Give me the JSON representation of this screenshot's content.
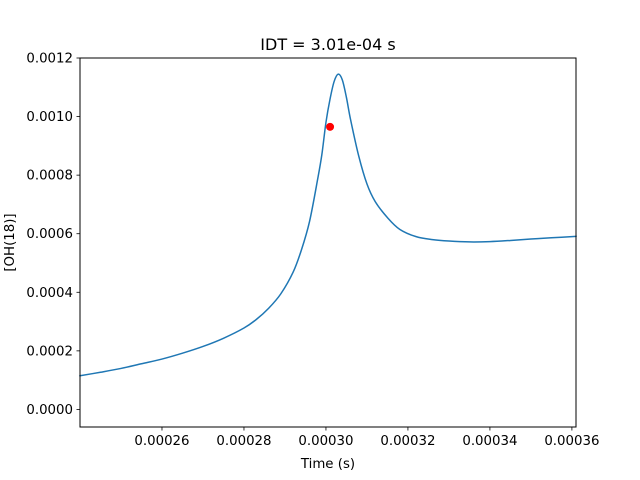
{
  "chart_data": {
    "type": "line",
    "title": "IDT = 3.01e-04 s",
    "xlabel": "Time (s)",
    "ylabel": "[OH(18)]",
    "xlim": [
      0.00024,
      0.000361
    ],
    "ylim": [
      -6e-05,
      0.0012
    ],
    "x_ticks": [
      0.00026,
      0.00028,
      0.0003,
      0.00032,
      0.00034,
      0.00036
    ],
    "x_tick_labels": [
      "0.00026",
      "0.00028",
      "0.00030",
      "0.00032",
      "0.00034",
      "0.00036"
    ],
    "y_ticks": [
      0.0,
      0.0002,
      0.0004,
      0.0006,
      0.0008,
      0.001,
      0.0012
    ],
    "y_tick_labels": [
      "0.0000",
      "0.0002",
      "0.0004",
      "0.0006",
      "0.0008",
      "0.0010",
      "0.0012"
    ],
    "grid": false,
    "legend": "none",
    "series": [
      {
        "color": "#1f77b4",
        "x": [
          0.00024,
          0.000245,
          0.00025,
          0.000255,
          0.00026,
          0.000265,
          0.00027,
          0.000275,
          0.00028,
          0.000283,
          0.000286,
          0.000289,
          0.000292,
          0.000294,
          0.000296,
          0.000298,
          0.000299,
          0.0003,
          0.000301,
          0.000302,
          0.000303,
          0.000304,
          0.000305,
          0.000306,
          0.000308,
          0.00031,
          0.000312,
          0.000315,
          0.000318,
          0.000322,
          0.000326,
          0.00033,
          0.000335,
          0.00034,
          0.000345,
          0.00035,
          0.000355,
          0.000361
        ],
        "y": [
          0.000115,
          0.000127,
          0.00014,
          0.000156,
          0.000172,
          0.000192,
          0.000215,
          0.000243,
          0.000278,
          0.000307,
          0.000345,
          0.000395,
          0.000469,
          0.000544,
          0.000642,
          0.000788,
          0.00087,
          0.00098,
          0.00106,
          0.00112,
          0.001145,
          0.001125,
          0.001065,
          0.00099,
          0.000865,
          0.00077,
          0.00071,
          0.000655,
          0.000615,
          0.00059,
          0.00058,
          0.000575,
          0.000572,
          0.000573,
          0.000577,
          0.000582,
          0.000586,
          0.000591
        ]
      }
    ],
    "markers": [
      {
        "x": 0.000301,
        "y": 0.000965,
        "color": "#ff0000"
      }
    ]
  }
}
